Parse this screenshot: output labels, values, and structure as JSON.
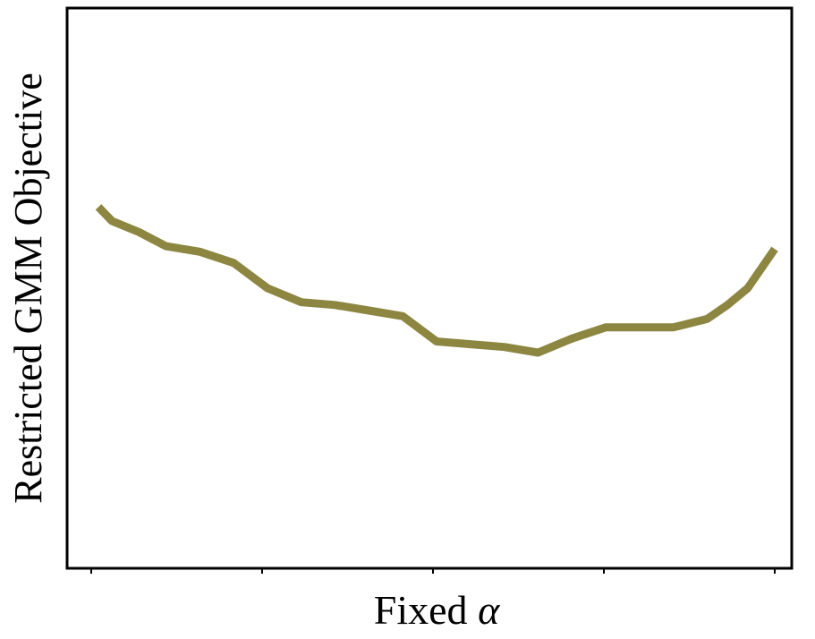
{
  "chart_data": {
    "type": "line",
    "title": "",
    "xlabel": "Fixed",
    "xlabel_symbol": "α",
    "ylabel": "Restricted GMM Objective",
    "x_tick_count": 5,
    "show_tick_labels": false,
    "grid": false,
    "legend": "none",
    "xlim": [
      0,
      1
    ],
    "ylim": [
      0,
      1
    ],
    "series": [
      {
        "color": "#8c8641",
        "x": [
          0.0,
          0.02,
          0.06,
          0.1,
          0.15,
          0.2,
          0.25,
          0.3,
          0.35,
          0.4,
          0.45,
          0.5,
          0.55,
          0.6,
          0.65,
          0.7,
          0.75,
          0.8,
          0.85,
          0.9,
          0.93,
          0.96,
          1.0
        ],
        "values": [
          0.645,
          0.62,
          0.6,
          0.575,
          0.565,
          0.545,
          0.5,
          0.475,
          0.47,
          0.46,
          0.45,
          0.405,
          0.4,
          0.395,
          0.385,
          0.41,
          0.43,
          0.43,
          0.43,
          0.445,
          0.47,
          0.5,
          0.57
        ]
      }
    ]
  }
}
